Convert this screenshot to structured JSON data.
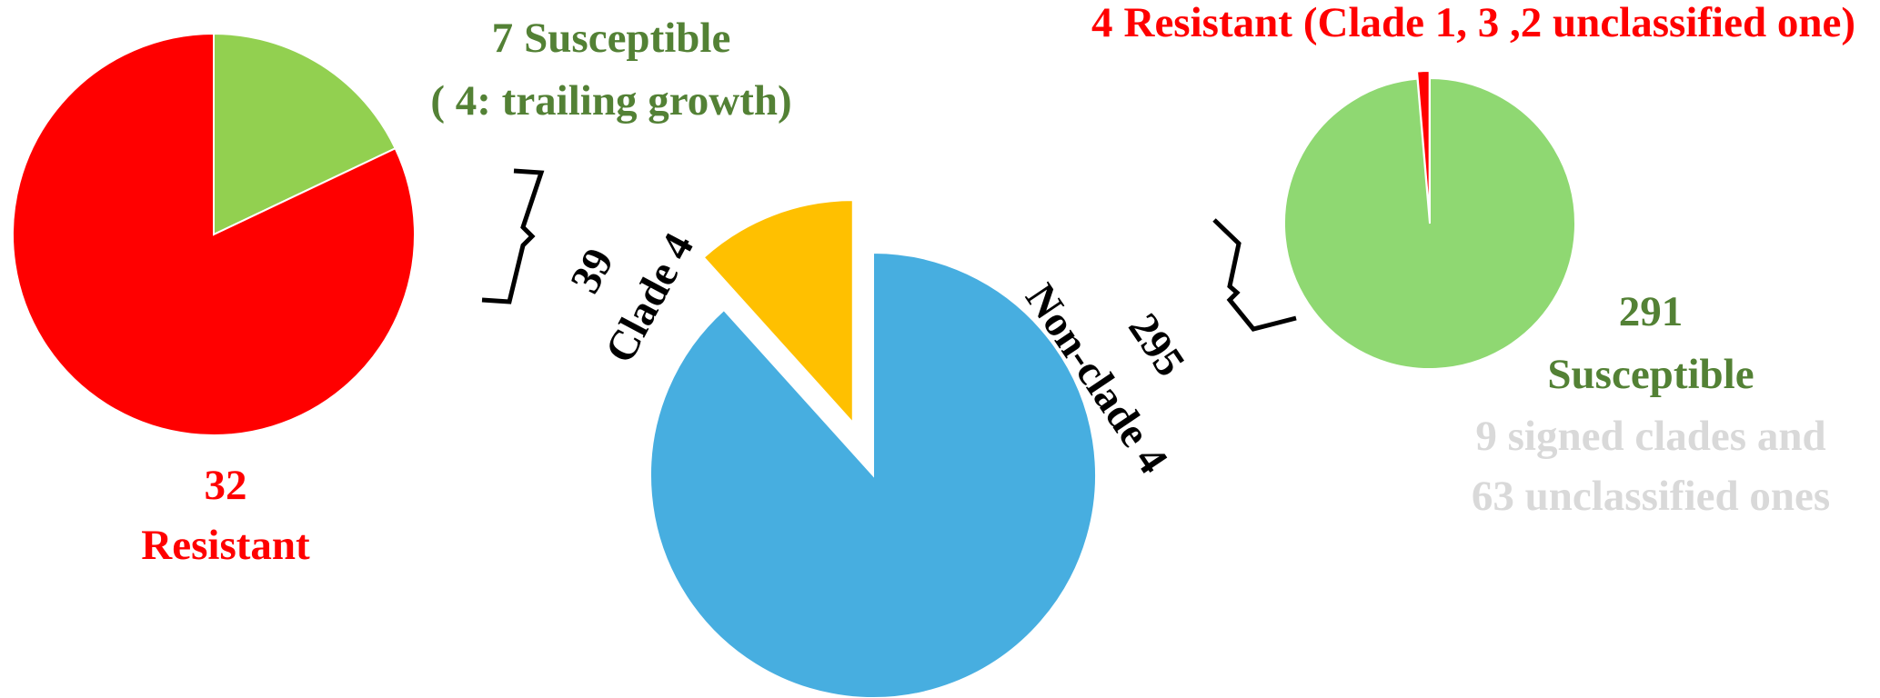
{
  "chart_data": [
    {
      "type": "pie",
      "categories": [
        "Susceptible",
        "Resistant"
      ],
      "values": [
        7,
        32
      ],
      "colors": [
        "#92d050",
        "#ff0000"
      ],
      "annotations": [
        "( 4: trailing growth)"
      ]
    },
    {
      "type": "pie",
      "categories": [
        "Clade 4",
        "Non-clade 4"
      ],
      "values": [
        39,
        295
      ],
      "colors": [
        "#ffc000",
        "#47aee0"
      ]
    },
    {
      "type": "pie",
      "categories": [
        "Resistant",
        "Susceptible"
      ],
      "values": [
        4,
        291
      ],
      "colors": [
        "#ff0000",
        "#8fd872"
      ],
      "annotations": [
        "(Clade 1, 3 ,2 unclassified one)",
        "9 signed clades and",
        "63 unclassified ones"
      ]
    }
  ]
}
